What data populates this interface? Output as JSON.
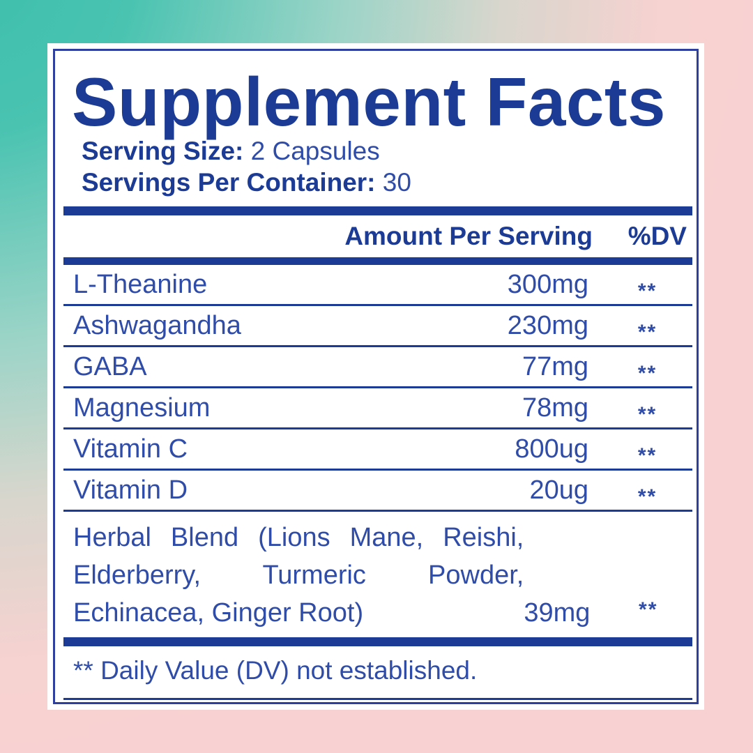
{
  "label": {
    "title": "Supplement Facts",
    "serving_size_label": "Serving Size:",
    "serving_size_value": " 2 Capsules",
    "servings_per_container_label": "Servings Per Container:",
    "servings_per_container_value": " 30",
    "header": {
      "amount": "Amount Per Serving",
      "dv": "%DV"
    },
    "rows": [
      {
        "name": "L-Theanine",
        "amount": "300mg",
        "dv": "**"
      },
      {
        "name": "Ashwagandha",
        "amount": "230mg",
        "dv": "**"
      },
      {
        "name": "GABA",
        "amount": "77mg",
        "dv": "**"
      },
      {
        "name": "Magnesium",
        "amount": "78mg",
        "dv": "**"
      },
      {
        "name": "Vitamin C",
        "amount": "800ug",
        "dv": "**"
      },
      {
        "name": "Vitamin D",
        "amount": "20ug",
        "dv": "**"
      }
    ],
    "blend": {
      "text": "Herbal Blend  (Lions Mane, Reishi, Elderberry, Turmeric Powder, Echinacea, Ginger Root)",
      "amount": "39mg",
      "dv": "**"
    },
    "footnote": "** Daily Value (DV) not established."
  },
  "colors": {
    "navy": "#1c3b94",
    "text_blue": "#2f4da8",
    "border_blue": "#2e3f9e",
    "background_teal": "#3ebfad",
    "background_pink": "#f8d2d2",
    "card_white": "#ffffff"
  }
}
